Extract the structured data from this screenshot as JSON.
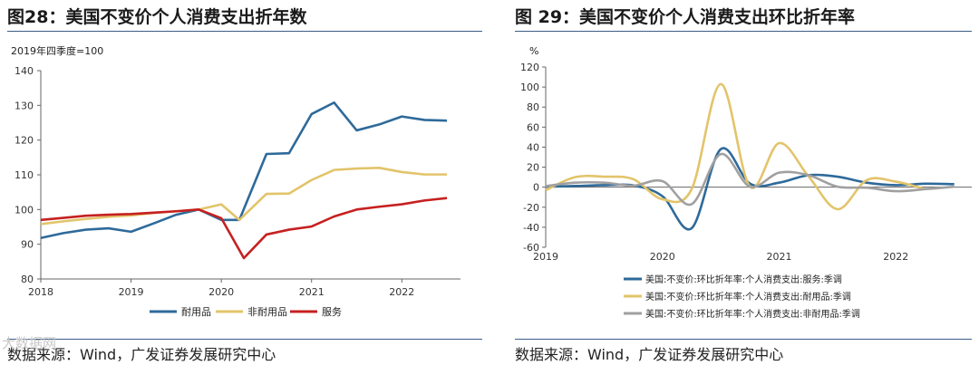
{
  "left": {
    "title": "图28：美国不变价个人消费支出折年数",
    "source": "数据来源：Wind，广发证券发展研究中心",
    "chart_data": {
      "type": "line",
      "unit_label": "2019年四季度=100",
      "x_labels": [
        "2018",
        "2019",
        "2020",
        "2021",
        "2022"
      ],
      "ylim": [
        80,
        140
      ],
      "yticks": [
        80,
        90,
        100,
        110,
        120,
        130,
        140
      ],
      "grid": false,
      "legend_position": "bottom-center",
      "series": [
        {
          "name": "耐用品",
          "color": "#2e6a9a",
          "points": [
            [
              2018.0,
              91.8
            ],
            [
              2018.25,
              93.2
            ],
            [
              2018.5,
              94.2
            ],
            [
              2018.75,
              94.6
            ],
            [
              2019.0,
              93.6
            ],
            [
              2019.25,
              96.0
            ],
            [
              2019.5,
              98.5
            ],
            [
              2019.75,
              100.0
            ],
            [
              2020.0,
              97.0
            ],
            [
              2020.2,
              97.0
            ],
            [
              2020.5,
              116.0
            ],
            [
              2020.75,
              116.2
            ],
            [
              2021.0,
              127.5
            ],
            [
              2021.25,
              130.8
            ],
            [
              2021.5,
              122.8
            ],
            [
              2021.75,
              124.5
            ],
            [
              2022.0,
              126.8
            ],
            [
              2022.25,
              125.8
            ],
            [
              2022.5,
              125.6
            ]
          ]
        },
        {
          "name": "非耐用品",
          "color": "#e2c46a",
          "points": [
            [
              2018.0,
              95.8
            ],
            [
              2018.25,
              96.6
            ],
            [
              2018.5,
              97.3
            ],
            [
              2018.75,
              97.9
            ],
            [
              2019.0,
              98.3
            ],
            [
              2019.25,
              99.0
            ],
            [
              2019.5,
              99.5
            ],
            [
              2019.75,
              100.0
            ],
            [
              2020.0,
              101.5
            ],
            [
              2020.2,
              97.0
            ],
            [
              2020.5,
              104.5
            ],
            [
              2020.75,
              104.6
            ],
            [
              2021.0,
              108.5
            ],
            [
              2021.25,
              111.4
            ],
            [
              2021.5,
              111.8
            ],
            [
              2021.75,
              112.0
            ],
            [
              2022.0,
              110.8
            ],
            [
              2022.25,
              110.1
            ],
            [
              2022.5,
              110.1
            ]
          ]
        },
        {
          "name": "服务",
          "color": "#c62020",
          "points": [
            [
              2018.0,
              97.0
            ],
            [
              2018.25,
              97.6
            ],
            [
              2018.5,
              98.2
            ],
            [
              2018.75,
              98.5
            ],
            [
              2019.0,
              98.7
            ],
            [
              2019.25,
              99.1
            ],
            [
              2019.5,
              99.5
            ],
            [
              2019.75,
              100.0
            ],
            [
              2020.0,
              97.5
            ],
            [
              2020.25,
              86.0
            ],
            [
              2020.5,
              92.8
            ],
            [
              2020.75,
              94.2
            ],
            [
              2021.0,
              95.1
            ],
            [
              2021.25,
              98.0
            ],
            [
              2021.5,
              100.0
            ],
            [
              2021.75,
              100.8
            ],
            [
              2022.0,
              101.5
            ],
            [
              2022.25,
              102.6
            ],
            [
              2022.5,
              103.3
            ]
          ]
        }
      ]
    }
  },
  "right": {
    "title": "图 29：美国不变价个人消费支出环比折年率",
    "source": "数据来源：Wind，广发证券发展研究中心",
    "chart_data": {
      "type": "line",
      "unit_label": "%",
      "x_labels": [
        "2019",
        "2020",
        "2021",
        "2022"
      ],
      "ylim": [
        -60,
        120
      ],
      "yticks": [
        -60,
        -40,
        -20,
        0,
        20,
        40,
        60,
        80,
        100,
        120
      ],
      "grid": false,
      "legend_position": "bottom-left",
      "series": [
        {
          "name": "美国:不变价:环比折年率:个人消费支出:服务:季调",
          "color": "#2e6a9a",
          "points": [
            [
              2019.0,
              0.5
            ],
            [
              2019.25,
              1.2
            ],
            [
              2019.5,
              2.0
            ],
            [
              2019.75,
              1.8
            ],
            [
              2020.0,
              -9.0
            ],
            [
              2020.25,
              -41.0
            ],
            [
              2020.5,
              38.0
            ],
            [
              2020.75,
              3.5
            ],
            [
              2021.0,
              4.5
            ],
            [
              2021.25,
              12.0
            ],
            [
              2021.5,
              10.5
            ],
            [
              2021.75,
              4.5
            ],
            [
              2022.0,
              2.0
            ],
            [
              2022.25,
              3.5
            ],
            [
              2022.5,
              3.0
            ]
          ]
        },
        {
          "name": "美国:不变价:环比折年率:个人消费支出:耐用品:季调",
          "color": "#e2c46a",
          "points": [
            [
              2019.0,
              -3.0
            ],
            [
              2019.25,
              10.0
            ],
            [
              2019.5,
              10.5
            ],
            [
              2019.75,
              8.0
            ],
            [
              2020.0,
              -12.0
            ],
            [
              2020.25,
              -2.0
            ],
            [
              2020.5,
              103.0
            ],
            [
              2020.75,
              0.5
            ],
            [
              2021.0,
              44.0
            ],
            [
              2021.25,
              11.0
            ],
            [
              2021.5,
              -22.0
            ],
            [
              2021.75,
              7.0
            ],
            [
              2022.0,
              5.5
            ],
            [
              2022.25,
              -2.0
            ]
          ]
        },
        {
          "name": "美国:不变价:环比折年率:个人消费支出:非耐用品:季调",
          "color": "#a0a0a0",
          "points": [
            [
              2019.0,
              1.0
            ],
            [
              2019.25,
              4.5
            ],
            [
              2019.5,
              4.5
            ],
            [
              2019.75,
              1.5
            ],
            [
              2020.0,
              6.0
            ],
            [
              2020.25,
              -17.0
            ],
            [
              2020.5,
              33.0
            ],
            [
              2020.75,
              0.5
            ],
            [
              2021.0,
              14.5
            ],
            [
              2021.25,
              12.0
            ],
            [
              2021.5,
              0.5
            ],
            [
              2021.75,
              -0.5
            ],
            [
              2022.0,
              -4.0
            ],
            [
              2022.25,
              -2.0
            ],
            [
              2022.5,
              0.5
            ]
          ]
        }
      ]
    }
  },
  "watermark": "大数据网"
}
